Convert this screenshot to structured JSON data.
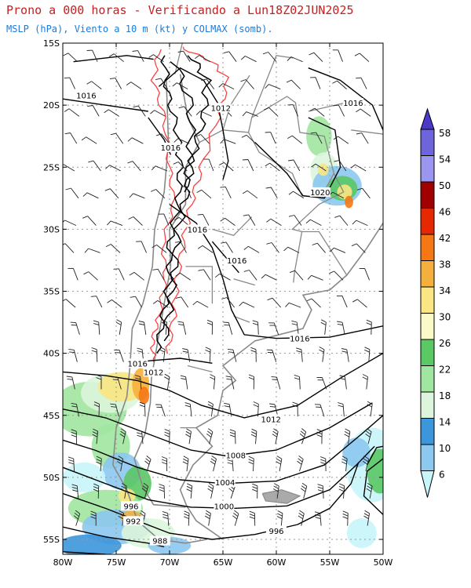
{
  "title": {
    "line1": "Prono a 000 horas - Verificando a Lun18Z02JUN2025",
    "line2": "MSLP (hPa), Viento a 10 m (kt) y COLMAX (somb)."
  },
  "axes": {
    "lat_labels": [
      "15S",
      "20S",
      "25S",
      "30S",
      "35S",
      "40S",
      "45S",
      "50S",
      "55S"
    ],
    "lon_labels": [
      "80W",
      "75W",
      "70W",
      "65W",
      "60W",
      "55W",
      "50W"
    ]
  },
  "isobars": [
    {
      "label": "1016",
      "lon": -77.8,
      "lat": -19.2
    },
    {
      "label": "1012",
      "lon": -65.2,
      "lat": -20.2
    },
    {
      "label": "1016",
      "lon": -69.9,
      "lat": -23.4
    },
    {
      "label": "1016",
      "lon": -52.8,
      "lat": -19.8
    },
    {
      "label": "1020",
      "lon": -55.9,
      "lat": -27.0
    },
    {
      "label": "1016",
      "lon": -67.4,
      "lat": -30.0
    },
    {
      "label": "1016",
      "lon": -63.7,
      "lat": -32.5
    },
    {
      "label": "1016",
      "lon": -57.8,
      "lat": -38.8
    },
    {
      "label": "1016",
      "lon": -73.0,
      "lat": -40.8
    },
    {
      "label": "1012",
      "lon": -71.5,
      "lat": -41.5
    },
    {
      "label": "1012",
      "lon": -60.5,
      "lat": -45.3
    },
    {
      "label": "1008",
      "lon": -63.8,
      "lat": -48.2
    },
    {
      "label": "1004",
      "lon": -64.8,
      "lat": -50.4
    },
    {
      "label": "1000",
      "lon": -64.9,
      "lat": -52.3
    },
    {
      "label": "996",
      "lon": -73.6,
      "lat": -52.3
    },
    {
      "label": "992",
      "lon": -73.4,
      "lat": -53.5
    },
    {
      "label": "996",
      "lon": -60.0,
      "lat": -54.3
    },
    {
      "label": "988",
      "lon": -70.9,
      "lat": -55.1
    }
  ],
  "colorbar": {
    "levels": [
      "58",
      "54",
      "50",
      "46",
      "42",
      "38",
      "34",
      "30",
      "26",
      "22",
      "18",
      "14",
      "10",
      "6"
    ],
    "colors": [
      "#4b39c8",
      "#6e64dc",
      "#9d96f0",
      "#a00000",
      "#e62800",
      "#f57814",
      "#f5af3c",
      "#fae682",
      "#fafac8",
      "#5ac864",
      "#a0e6a0",
      "#dcf5dc",
      "#3c96dc",
      "#8cc8f0",
      "#c8f5fa"
    ]
  },
  "colors": {
    "title": "#c81e1e",
    "subtitle": "#1e7ad8",
    "border": "#888888",
    "topography": "#ff4040"
  }
}
